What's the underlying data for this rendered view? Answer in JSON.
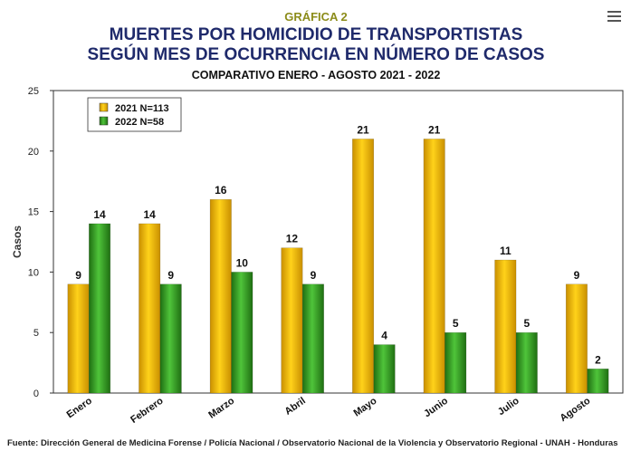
{
  "header": {
    "figure_label": "GRÁFICA 2",
    "title_line1": "MUERTES POR HOMICIDIO DE TRANSPORTISTAS",
    "title_line2": "SEGÚN MES DE OCURRENCIA EN NÚMERO DE CASOS",
    "subtitle": "COMPARATIVO ENERO - AGOSTO 2021 - 2022"
  },
  "menu": {
    "icon": "hamburger-menu-icon"
  },
  "footer": {
    "source": "Fuente: Dirección General de Medicina Forense / Policía Nacional / Observatorio Nacional de la Violencia y Observatorio Regional - UNAH - Honduras"
  },
  "chart_data": {
    "type": "bar",
    "title": "MUERTES POR HOMICIDIO DE TRANSPORTISTAS SEGÚN MES DE OCURRENCIA EN NÚMERO DE CASOS",
    "subtitle": "COMPARATIVO ENERO - AGOSTO 2021 - 2022",
    "xlabel": "",
    "ylabel": "Casos",
    "ylim": [
      0,
      25
    ],
    "yticks": [
      0,
      5,
      10,
      15,
      20,
      25
    ],
    "grid": false,
    "legend_position": "top-left",
    "categories": [
      "Enero",
      "Febrero",
      "Marzo",
      "Abril",
      "Mayo",
      "Junio",
      "Julio",
      "Agosto"
    ],
    "series": [
      {
        "name": "2021 N=113",
        "values": [
          9,
          14,
          16,
          12,
          21,
          21,
          11,
          9
        ],
        "color": "#e8a800"
      },
      {
        "name": "2022 N=58",
        "values": [
          14,
          9,
          10,
          9,
          4,
          5,
          5,
          2
        ],
        "color": "#2e8b1f"
      }
    ],
    "data_labels": true
  }
}
